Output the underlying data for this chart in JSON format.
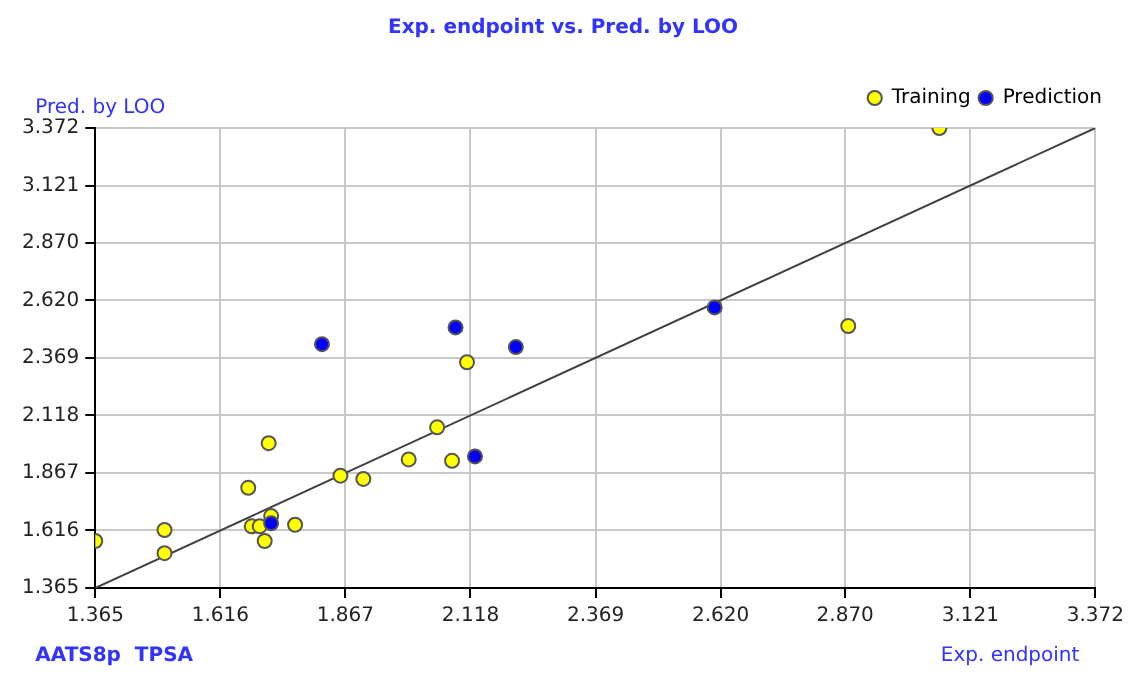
{
  "chart_data": {
    "type": "scatter",
    "title": "Exp. endpoint vs. Pred. by LOO",
    "xlabel": "Exp. endpoint",
    "ylabel": "Pred. by LOO",
    "annotations": [
      "AATS8p  TPSA"
    ],
    "xlim": [
      1.365,
      3.372
    ],
    "ylim": [
      1.365,
      3.372
    ],
    "xticks": [
      1.365,
      1.616,
      1.867,
      2.118,
      2.369,
      {
        "value": 2.62,
        "label": "2.620"
      },
      {
        "value": 2.87,
        "label": "2.870"
      },
      3.121,
      3.372
    ],
    "yticks": [
      1.365,
      1.616,
      1.867,
      2.118,
      2.369,
      {
        "value": 2.62,
        "label": "2.620"
      },
      {
        "value": 2.87,
        "label": "2.870"
      },
      3.121,
      3.372
    ],
    "grid": true,
    "legend": "top right",
    "marker": "circle",
    "series": [
      {
        "name": "Training",
        "color": "#ffff00",
        "x": [
          1.365,
          1.504,
          1.504,
          1.672,
          1.713,
          1.679,
          1.695,
          1.718,
          1.705,
          1.766,
          1.857,
          1.903,
          1.994,
          2.051,
          2.081,
          2.111,
          2.876,
          3.059
        ],
        "values": [
          1.57,
          1.618,
          1.517,
          1.802,
          1.997,
          1.634,
          1.634,
          1.679,
          1.57,
          1.641,
          1.855,
          1.841,
          1.926,
          2.066,
          1.92,
          2.35,
          2.508,
          3.372
        ]
      },
      {
        "name": "Prediction",
        "color": "#0000ff",
        "x": [
          1.82,
          2.088,
          2.209,
          2.127,
          1.718,
          2.608
        ],
        "values": [
          2.429,
          2.502,
          2.416,
          1.939,
          1.647,
          2.589
        ]
      },
      {
        "type": "line",
        "color": "#404040",
        "x": [
          1.365,
          3.372
        ],
        "values": [
          1.365,
          3.372
        ],
        "marker": "none"
      }
    ]
  }
}
